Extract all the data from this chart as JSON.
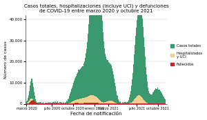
{
  "title_line1": "Casos totales, hospitalizaciones (incluye UCI) y defunciones",
  "title_line2": "de COVID-19 entre marzo 2020 y octubre 2021",
  "xlabel": "Fecha de notificación",
  "ylabel": "Número de casos",
  "color_casos": "#3a9a6e",
  "color_hosp": "#f0d090",
  "color_fall": "#cc2222",
  "legend_labels": [
    "Casos totales",
    "Hospitalizados\ny UCI",
    "Fallecidos"
  ],
  "ylim": [
    0,
    42000
  ],
  "yticks": [
    0,
    10000,
    20000,
    30000,
    40000
  ],
  "xtick_labels": [
    "marzo 2020",
    "julio 2020",
    "octubre 2020",
    "enero 2021",
    "marzo 2021",
    "julio 2021",
    "octubre 2021"
  ],
  "n_days": 600,
  "figsize": [
    3.0,
    1.74
  ],
  "dpi": 100
}
